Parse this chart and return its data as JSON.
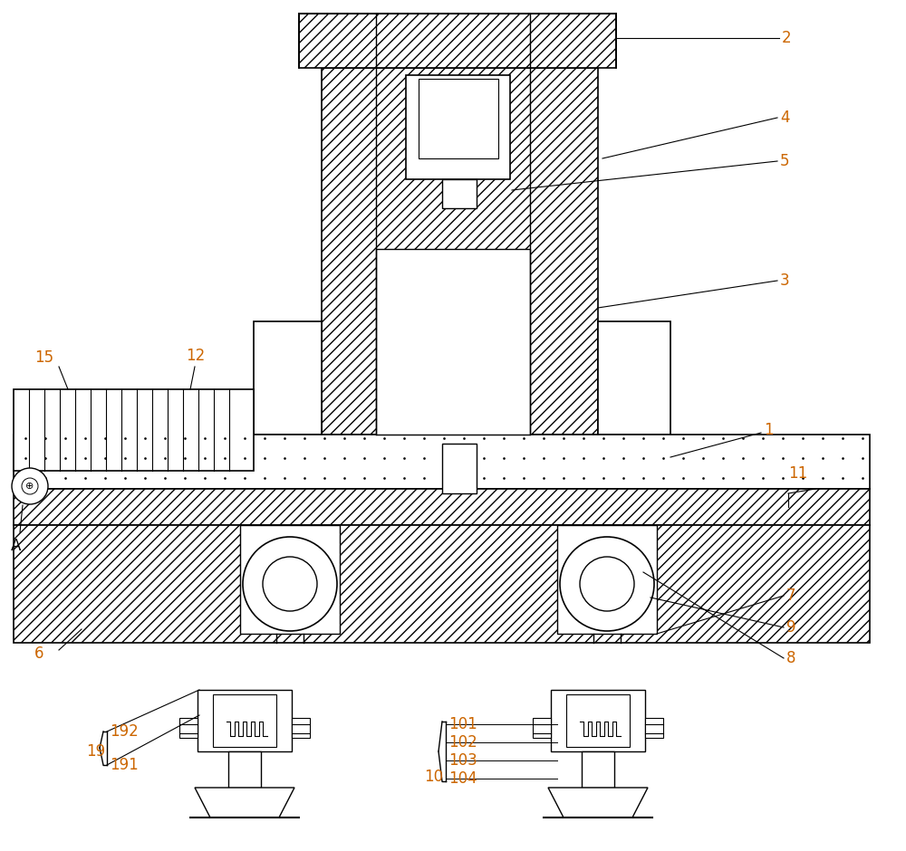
{
  "bg_color": "#ffffff",
  "line_color": "#000000",
  "label_color": "#cc6600",
  "fig_width": 10.0,
  "fig_height": 9.4
}
